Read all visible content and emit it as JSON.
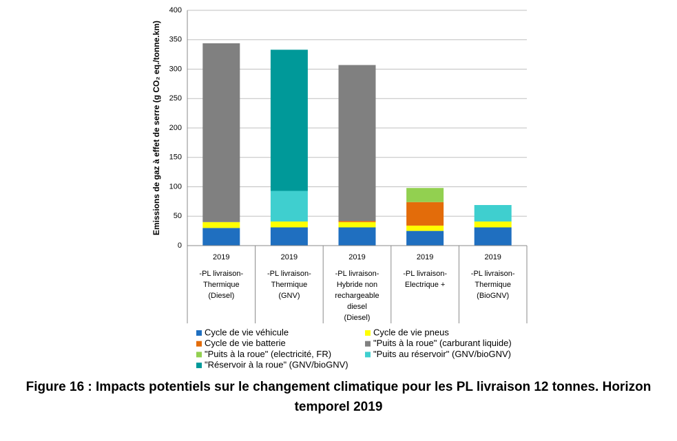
{
  "chart_data": {
    "type": "stacked-bar",
    "caption": "Figure 16 : Impacts potentiels sur le changement climatique pour les PL livraison 12 tonnes. Horizon temporel 2019",
    "y_label": "Emissions de gaz à effet de serre (g CO₂ eq./tonne.km)",
    "years": [
      "2019",
      "2019",
      "2019",
      "2019",
      "2019"
    ],
    "categories": [
      [
        "-PL livraison-",
        "Thermique",
        "(Diesel)"
      ],
      [
        "-PL livraison-",
        "Thermique",
        "(GNV)"
      ],
      [
        "-PL livraison-",
        "Hybride non",
        "rechargeable",
        "diesel",
        "(Diesel)"
      ],
      [
        "-PL livraison-",
        "Electrique +"
      ],
      [
        "-PL livraison-",
        "Thermique",
        "(BioGNV)"
      ]
    ],
    "series": [
      {
        "name": "Cycle de vie véhicule",
        "color": "#1f6fc0",
        "values": [
          30,
          31,
          31,
          25,
          31
        ]
      },
      {
        "name": "Cycle de vie pneus",
        "color": "#ffff00",
        "values": [
          10,
          10,
          9,
          9,
          10
        ]
      },
      {
        "name": "Cycle de vie batterie",
        "color": "#e36c0a",
        "values": [
          0,
          0,
          2,
          40,
          0
        ]
      },
      {
        "name": "\"Puits à la roue\" (carburant liquide)",
        "color": "#808080",
        "values": [
          304,
          0,
          265,
          0,
          0
        ]
      },
      {
        "name": "\"Puits à la roue\" (electricité, FR)",
        "color": "#92d050",
        "values": [
          0,
          0,
          0,
          24,
          0
        ]
      },
      {
        "name": "\"Puits au réservoir\" (GNV/bioGNV)",
        "color": "#3fcfcf",
        "values": [
          0,
          52,
          0,
          0,
          28
        ]
      },
      {
        "name": "\"Réservoir à la roue\" (GNV/bioGNV)",
        "color": "#009999",
        "values": [
          0,
          240,
          0,
          0,
          0
        ]
      }
    ],
    "ylim": [
      0,
      400
    ],
    "yticks": [
      0,
      50,
      100,
      150,
      200,
      250,
      300,
      350,
      400
    ],
    "grid": true
  }
}
